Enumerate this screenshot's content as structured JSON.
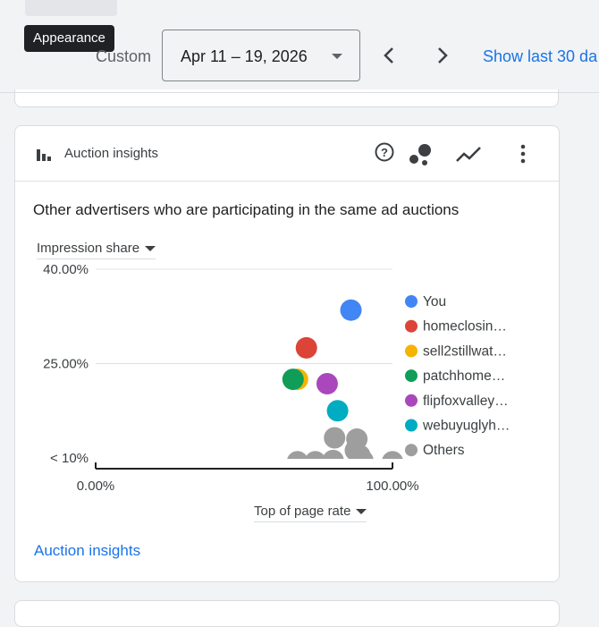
{
  "toolbar": {
    "tooltip": "Appearance",
    "date_label": "Custom",
    "date_range": "Apr 11 – 19, 2026",
    "show_last": "Show last 30 da"
  },
  "card": {
    "title": "Auction insights",
    "subtitle": "Other advertisers who are participating in the same ad auctions",
    "y_metric": "Impression share",
    "x_metric": "Top of page rate",
    "footer_link": "Auction insights",
    "icons": [
      "bar-chart-icon",
      "help-icon",
      "bubble-chart-icon",
      "line-chart-icon",
      "more-vert-icon"
    ]
  },
  "chart_data": {
    "type": "scatter",
    "xlabel": "Top of page rate",
    "ylabel": "Impression share",
    "xlim": [
      0,
      100
    ],
    "ylim": [
      10,
      40
    ],
    "x_ticks": [
      "0.00%",
      "100.00%"
    ],
    "y_ticks": [
      {
        "value": 40,
        "label": "40.00%"
      },
      {
        "value": 25,
        "label": "25.00%"
      },
      {
        "value": 10,
        "label": "< 10%"
      }
    ],
    "grid": true,
    "legend_position": "right",
    "series": [
      {
        "name": "You",
        "color": "#4285f4",
        "points": [
          {
            "x": 86,
            "y": 33.5
          }
        ]
      },
      {
        "name": "homeclosin…",
        "color": "#db4437",
        "points": [
          {
            "x": 71,
            "y": 27.5
          }
        ]
      },
      {
        "name": "sell2stillwat…",
        "color": "#f4b400",
        "points": [
          {
            "x": 68,
            "y": 22.5
          }
        ]
      },
      {
        "name": "patchhome…",
        "color": "#0f9d58",
        "points": [
          {
            "x": 66.5,
            "y": 22.5
          }
        ]
      },
      {
        "name": "flipfoxvalley…",
        "color": "#ab47bc",
        "points": [
          {
            "x": 78,
            "y": 21.8
          }
        ]
      },
      {
        "name": "webuyuglyh…",
        "color": "#00acc1",
        "points": [
          {
            "x": 81.5,
            "y": 17.5
          }
        ]
      },
      {
        "name": "Others",
        "color": "#9e9e9e",
        "points": [
          {
            "x": 80.5,
            "y": 13.2
          },
          {
            "x": 88,
            "y": 13
          },
          {
            "x": 87.5,
            "y": 11.2
          },
          {
            "x": 89,
            "y": 10.4
          },
          {
            "x": 90,
            "y": 9.6
          },
          {
            "x": 68,
            "y": 9.4
          },
          {
            "x": 74,
            "y": 9.4
          },
          {
            "x": 80,
            "y": 9.6
          },
          {
            "x": 100,
            "y": 9.4
          }
        ]
      }
    ]
  }
}
